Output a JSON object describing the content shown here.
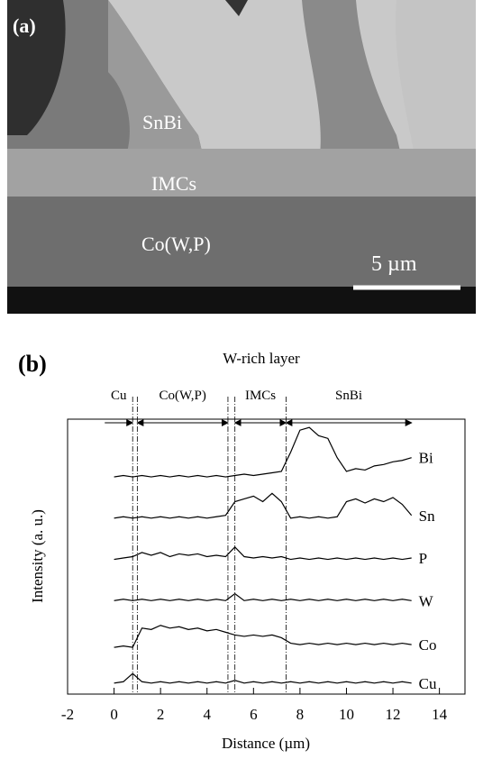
{
  "panel_a": {
    "label": "(a)",
    "texts": [
      "SnBi",
      "IMCs",
      "Co(W,P)"
    ],
    "scale_bar": "5 µm"
  },
  "chart_data": {
    "type": "line",
    "panel_label": "(b)",
    "title": "W-rich layer",
    "x_label": "Distance (µm)",
    "y_label": "Intensity (a. u.)",
    "xlim": [
      -2,
      15.1
    ],
    "ylim": [
      0,
      10
    ],
    "xticks": [
      -2,
      0,
      2,
      4,
      6,
      8,
      10,
      12,
      14
    ],
    "boundaries": [
      0.8,
      1.0,
      4.9,
      5.2,
      7.4
    ],
    "regions": [
      {
        "label": "Cu",
        "from": -0.4,
        "to": 0.8
      },
      {
        "label": "Co(W,P)",
        "from": 1.0,
        "to": 4.9
      },
      {
        "label": "IMCs",
        "from": 5.2,
        "to": 7.4
      },
      {
        "label": "SnBi",
        "from": 7.4,
        "to": 12.8
      }
    ],
    "x": [
      0,
      0.4,
      0.8,
      1.2,
      1.6,
      2.0,
      2.4,
      2.8,
      3.2,
      3.6,
      4.0,
      4.4,
      4.8,
      5.2,
      5.6,
      6.0,
      6.4,
      6.8,
      7.2,
      7.6,
      8.0,
      8.4,
      8.8,
      9.2,
      9.6,
      10.0,
      10.4,
      10.8,
      11.2,
      11.6,
      12.0,
      12.4,
      12.8
    ],
    "series": [
      {
        "name": "Bi",
        "color": "#000000",
        "values": [
          7.9,
          7.95,
          7.9,
          7.95,
          7.9,
          7.95,
          7.9,
          7.95,
          7.9,
          7.95,
          7.9,
          7.95,
          7.9,
          7.95,
          8.0,
          7.95,
          8.0,
          8.05,
          8.1,
          8.8,
          9.6,
          9.7,
          9.4,
          9.3,
          8.6,
          8.1,
          8.2,
          8.15,
          8.3,
          8.35,
          8.45,
          8.5,
          8.6
        ]
      },
      {
        "name": "Sn",
        "color": "#000000",
        "values": [
          6.4,
          6.45,
          6.4,
          6.45,
          6.4,
          6.45,
          6.4,
          6.45,
          6.4,
          6.45,
          6.4,
          6.45,
          6.5,
          7.0,
          7.1,
          7.2,
          7.0,
          7.3,
          7.0,
          6.4,
          6.45,
          6.4,
          6.45,
          6.4,
          6.45,
          7.0,
          7.1,
          6.95,
          7.1,
          7.0,
          7.15,
          6.9,
          6.5
        ]
      },
      {
        "name": "P",
        "color": "#000000",
        "values": [
          4.9,
          4.95,
          5.0,
          5.15,
          5.05,
          5.15,
          5.0,
          5.1,
          5.05,
          5.1,
          5.0,
          5.05,
          5.0,
          5.35,
          5.0,
          4.95,
          5.0,
          4.95,
          5.0,
          4.9,
          4.95,
          4.9,
          4.95,
          4.9,
          4.95,
          4.9,
          4.95,
          4.9,
          4.95,
          4.9,
          4.95,
          4.9,
          4.95
        ]
      },
      {
        "name": "W",
        "color": "#000000",
        "values": [
          3.4,
          3.45,
          3.4,
          3.45,
          3.4,
          3.45,
          3.4,
          3.45,
          3.4,
          3.45,
          3.4,
          3.45,
          3.4,
          3.65,
          3.4,
          3.45,
          3.4,
          3.45,
          3.4,
          3.45,
          3.4,
          3.45,
          3.4,
          3.45,
          3.4,
          3.45,
          3.4,
          3.45,
          3.4,
          3.45,
          3.4,
          3.45,
          3.4
        ]
      },
      {
        "name": "Co",
        "color": "#000000",
        "values": [
          1.7,
          1.75,
          1.7,
          2.4,
          2.35,
          2.5,
          2.4,
          2.45,
          2.35,
          2.4,
          2.3,
          2.35,
          2.25,
          2.15,
          2.1,
          2.15,
          2.1,
          2.15,
          2.05,
          1.85,
          1.8,
          1.85,
          1.8,
          1.85,
          1.8,
          1.85,
          1.8,
          1.85,
          1.8,
          1.85,
          1.8,
          1.85,
          1.8
        ]
      },
      {
        "name": "Cu",
        "color": "#000000",
        "values": [
          0.4,
          0.45,
          0.75,
          0.45,
          0.4,
          0.45,
          0.4,
          0.45,
          0.4,
          0.45,
          0.4,
          0.45,
          0.4,
          0.5,
          0.4,
          0.45,
          0.4,
          0.45,
          0.4,
          0.45,
          0.4,
          0.45,
          0.4,
          0.45,
          0.4,
          0.45,
          0.4,
          0.45,
          0.4,
          0.45,
          0.4,
          0.45,
          0.4
        ]
      }
    ]
  }
}
